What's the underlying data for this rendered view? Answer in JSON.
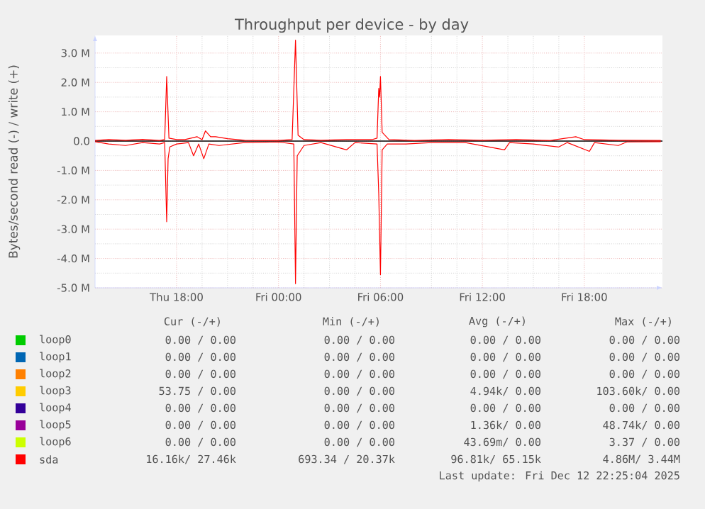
{
  "chart_data": {
    "type": "line",
    "title": "Throughput per device - by day",
    "ylabel": "Bytes/second read (-) / write (+)",
    "xlim": [
      "2025-12-11T13:12",
      "2025-12-12T22:36"
    ],
    "ylim": [
      -5000000,
      3600000
    ],
    "xticks": [
      {
        "value": "2025-12-11T18:00",
        "label": "Thu 18:00"
      },
      {
        "value": "2025-12-12T00:00",
        "label": "Fri 00:00"
      },
      {
        "value": "2025-12-12T06:00",
        "label": "Fri 06:00"
      },
      {
        "value": "2025-12-12T12:00",
        "label": "Fri 12:00"
      },
      {
        "value": "2025-12-12T18:00",
        "label": "Fri 18:00"
      }
    ],
    "yticks": [
      {
        "value": -5000000,
        "label": "-5.0 M"
      },
      {
        "value": -4000000,
        "label": "-4.0 M"
      },
      {
        "value": -3000000,
        "label": "-3.0 M"
      },
      {
        "value": -2000000,
        "label": "-2.0 M"
      },
      {
        "value": -1000000,
        "label": "-1.0 M"
      },
      {
        "value": 0,
        "label": "0.0"
      },
      {
        "value": 1000000,
        "label": "1.0 M"
      },
      {
        "value": 2000000,
        "label": "2.0 M"
      },
      {
        "value": 3000000,
        "label": "3.0 M"
      }
    ],
    "grid": true,
    "legend": "bottom",
    "marker": "none",
    "line_style": "solid",
    "ref_lines": [
      {
        "axis": "y",
        "value": 0,
        "color": "#000000"
      }
    ],
    "series": [
      {
        "name": "loop0",
        "color": "#00cc00"
      },
      {
        "name": "loop1",
        "color": "#0066b3"
      },
      {
        "name": "loop2",
        "color": "#ff8000"
      },
      {
        "name": "loop3",
        "color": "#ffcc00"
      },
      {
        "name": "loop4",
        "color": "#330099"
      },
      {
        "name": "loop5",
        "color": "#990099"
      },
      {
        "name": "loop6",
        "color": "#ccff00"
      },
      {
        "name": "sda",
        "color": "#ff0000",
        "x": [
          "2025-12-11T13:12",
          "2025-12-11T14:00",
          "2025-12-11T15:00",
          "2025-12-11T16:00",
          "2025-12-11T17:00",
          "2025-12-11T17:18",
          "2025-12-11T17:25",
          "2025-12-11T17:33",
          "2025-12-11T18:00",
          "2025-12-11T18:30",
          "2025-12-11T19:12",
          "2025-12-11T19:30",
          "2025-12-11T19:42",
          "2025-12-11T20:00",
          "2025-12-11T20:18",
          "2025-12-11T21:00",
          "2025-12-11T22:00",
          "2025-12-11T23:00",
          "2025-12-12T00:00",
          "2025-12-12T00:48",
          "2025-12-12T01:00",
          "2025-12-12T01:09",
          "2025-12-12T01:30",
          "2025-12-12T02:30",
          "2025-12-12T04:00",
          "2025-12-12T05:30",
          "2025-12-12T05:48",
          "2025-12-12T05:54",
          "2025-12-12T05:57",
          "2025-12-12T06:00",
          "2025-12-12T06:06",
          "2025-12-12T06:30",
          "2025-12-12T08:00",
          "2025-12-12T10:00",
          "2025-12-12T12:00",
          "2025-12-12T14:00",
          "2025-12-12T16:00",
          "2025-12-12T17:30",
          "2025-12-12T18:00",
          "2025-12-12T20:00",
          "2025-12-12T22:30"
        ],
        "values": [
          20000,
          50000,
          30000,
          60000,
          20000,
          50000,
          2200000,
          100000,
          50000,
          50000,
          150000,
          50000,
          350000,
          150000,
          150000,
          80000,
          30000,
          20000,
          20000,
          50000,
          3440000,
          200000,
          50000,
          30000,
          50000,
          50000,
          100000,
          1800000,
          1500000,
          2200000,
          300000,
          50000,
          20000,
          50000,
          30000,
          50000,
          20000,
          150000,
          50000,
          30000,
          20000
        ]
      },
      {
        "color": "#ff0000",
        "x": [
          "2025-12-11T13:12",
          "2025-12-11T14:00",
          "2025-12-11T15:00",
          "2025-12-11T16:00",
          "2025-12-11T17:00",
          "2025-12-11T17:18",
          "2025-12-11T17:25",
          "2025-12-11T17:30",
          "2025-12-11T17:36",
          "2025-12-11T18:00",
          "2025-12-11T18:42",
          "2025-12-11T19:00",
          "2025-12-11T19:18",
          "2025-12-11T19:36",
          "2025-12-11T19:54",
          "2025-12-11T20:30",
          "2025-12-11T22:00",
          "2025-12-12T00:00",
          "2025-12-12T00:54",
          "2025-12-12T01:00",
          "2025-12-12T01:06",
          "2025-12-12T01:30",
          "2025-12-12T02:30",
          "2025-12-12T04:00",
          "2025-12-12T04:30",
          "2025-12-12T05:48",
          "2025-12-12T05:54",
          "2025-12-12T06:00",
          "2025-12-12T06:06",
          "2025-12-12T06:24",
          "2025-12-12T07:30",
          "2025-12-12T09:00",
          "2025-12-12T11:00",
          "2025-12-12T13:18",
          "2025-12-12T13:36",
          "2025-12-12T15:00",
          "2025-12-12T16:30",
          "2025-12-12T17:00",
          "2025-12-12T18:18",
          "2025-12-12T18:36",
          "2025-12-12T20:00",
          "2025-12-12T20:30",
          "2025-12-12T22:30"
        ],
        "values": [
          -20000,
          -100000,
          -150000,
          -50000,
          -100000,
          -50000,
          -2750000,
          -600000,
          -200000,
          -100000,
          -50000,
          -500000,
          -100000,
          -600000,
          -100000,
          -150000,
          -50000,
          -30000,
          -100000,
          -4860000,
          -500000,
          -150000,
          -50000,
          -300000,
          -50000,
          -100000,
          -1800000,
          -4550000,
          -300000,
          -100000,
          -100000,
          -50000,
          -50000,
          -300000,
          -50000,
          -100000,
          -200000,
          -50000,
          -350000,
          -50000,
          -150000,
          -30000,
          -20000
        ]
      }
    ],
    "annotations": [
      "Cur (-/+)",
      "Min (-/+)",
      "Avg (-/+)",
      "Max (-/+)",
      "0.00 /  0.00",
      "0.00 /  0.00",
      "0.00 /  0.00",
      "0.00 /  0.00",
      "0.00 /  0.00",
      "0.00 /  0.00",
      "0.00 /  0.00",
      "0.00 /  0.00",
      "0.00 /  0.00",
      "0.00 /  0.00",
      "0.00 /  0.00",
      "0.00 /  0.00",
      "53.75 /  0.00",
      "0.00 /  0.00",
      "4.94k/  0.00",
      "103.60k/  0.00",
      "0.00 /  0.00",
      "0.00 /  0.00",
      "0.00 /  0.00",
      "0.00 /  0.00",
      "0.00 /  0.00",
      "0.00 /  0.00",
      "1.36k/  0.00",
      "48.74k/  0.00",
      "0.00 /  0.00",
      "0.00 /  0.00",
      "43.69m/  0.00",
      "3.37 /  0.00",
      "16.16k/ 27.46k",
      "693.34 / 20.37k",
      "96.81k/ 65.15k",
      "4.86M/  3.44M",
      "Last update: Fri Dec 12 22:25:04 2025"
    ]
  }
}
